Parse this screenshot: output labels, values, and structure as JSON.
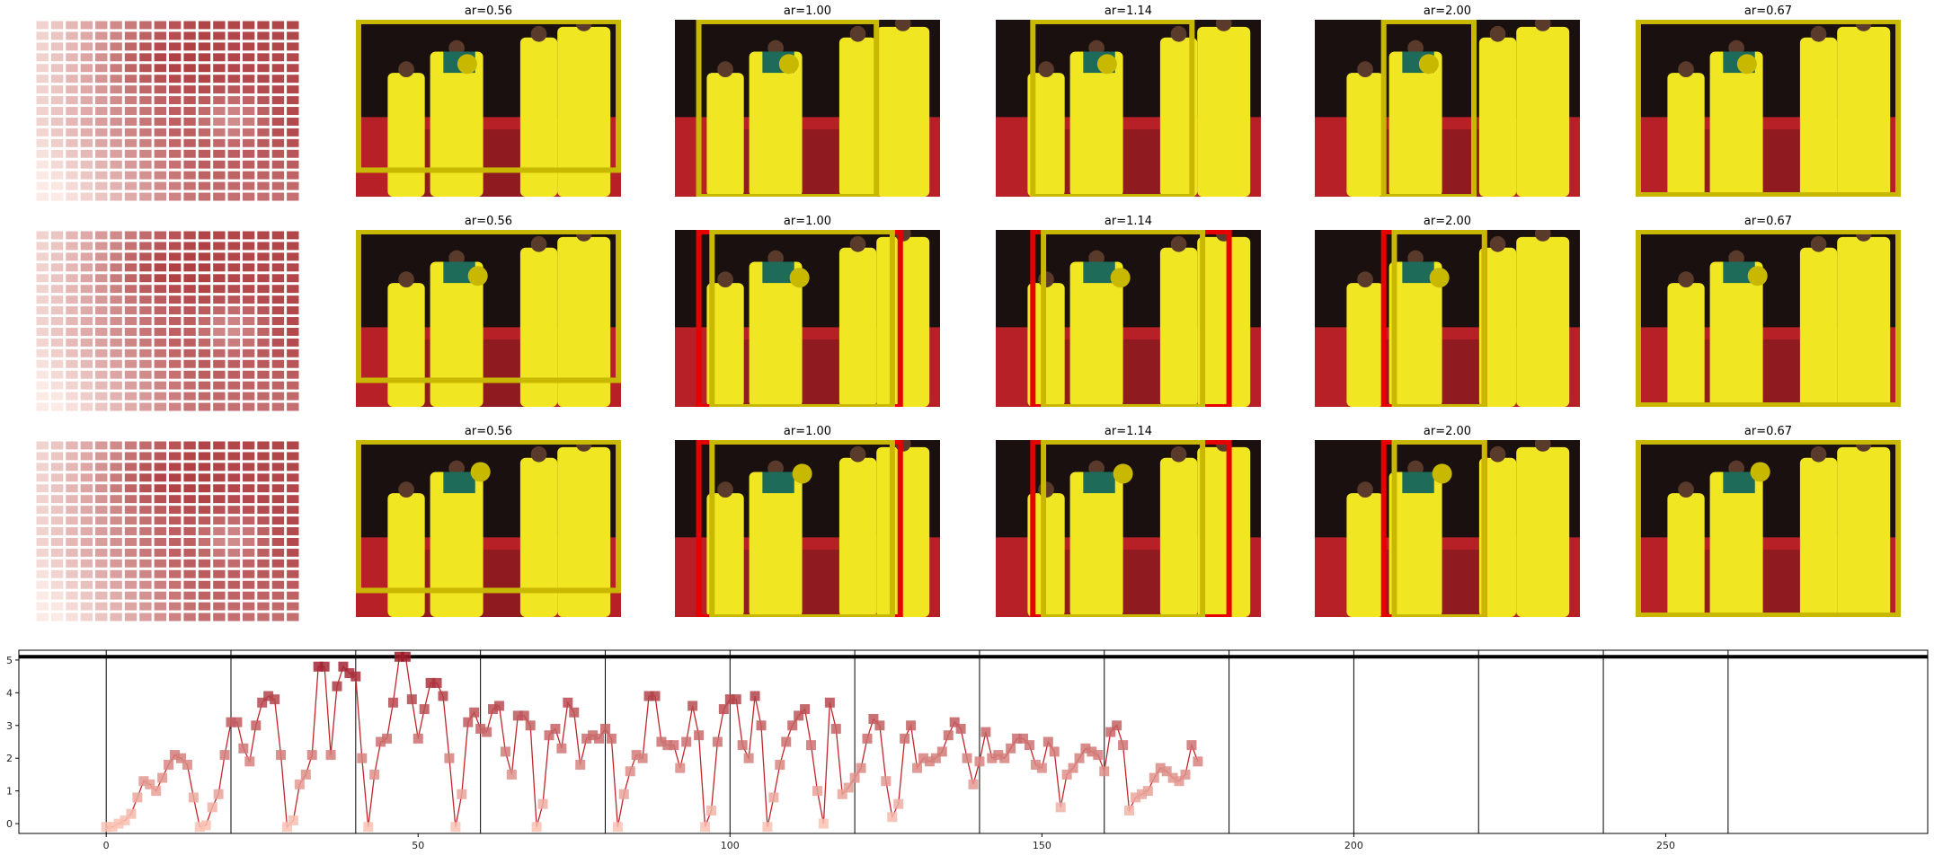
{
  "grid": {
    "rows": [
      {
        "panels": [
          {
            "title": "ar=0.56"
          },
          {
            "title": "ar=1.00"
          },
          {
            "title": "ar=1.14"
          },
          {
            "title": "ar=2.00"
          },
          {
            "title": "ar=0.67"
          }
        ]
      },
      {
        "panels": [
          {
            "title": "ar=0.56"
          },
          {
            "title": "ar=1.00"
          },
          {
            "title": "ar=1.14"
          },
          {
            "title": "ar=2.00"
          },
          {
            "title": "ar=0.67"
          }
        ]
      },
      {
        "panels": [
          {
            "title": "ar=0.56"
          },
          {
            "title": "ar=1.00"
          },
          {
            "title": "ar=1.14"
          },
          {
            "title": "ar=2.00"
          },
          {
            "title": "ar=0.67"
          }
        ]
      }
    ]
  },
  "colors": {
    "crop_box": "#c8b900",
    "alt_box": "#e60000",
    "focus_dot": "#c8b900",
    "line": "#c0262b",
    "marker_high": "#9e1b2a",
    "marker_low": "#f9c2b3",
    "threshold": "#000000"
  },
  "chart_data": {
    "type": "line",
    "title": "",
    "xlabel": "",
    "ylabel": "",
    "xlim": [
      -14,
      292
    ],
    "ylim": [
      -0.3,
      5.3
    ],
    "xticks": [
      0,
      50,
      100,
      150,
      200,
      250
    ],
    "yticks": [
      0,
      1,
      2,
      3,
      4,
      5
    ],
    "threshold_y": 5.1,
    "segment_boundaries": [
      0,
      20,
      40,
      60,
      80,
      100,
      120,
      140,
      160,
      180,
      200,
      220,
      240,
      260
    ],
    "series": [
      {
        "values": [
          -0.1,
          -0.1,
          0.0,
          0.1,
          0.3,
          0.8,
          1.3,
          1.2,
          1.0,
          1.4,
          1.8,
          2.1,
          2.0,
          1.8,
          0.8,
          -0.1,
          -0.05,
          0.5,
          0.9,
          2.1,
          3.1,
          3.1,
          2.3,
          1.9,
          3.0,
          3.7,
          3.9,
          3.8,
          2.1,
          -0.1,
          0.1,
          1.2,
          1.5,
          2.1,
          4.8,
          4.8,
          2.1,
          4.2,
          4.8,
          4.6,
          4.5,
          2.0,
          -0.1,
          1.5,
          2.5,
          2.6,
          3.7,
          5.1,
          5.1,
          3.8,
          2.6,
          3.5,
          4.3,
          4.3,
          3.9,
          2.0,
          -0.1,
          0.9,
          3.1,
          3.4,
          2.9,
          2.8,
          3.5,
          3.6,
          2.2,
          1.5,
          3.3,
          3.3,
          3.0,
          -0.1,
          0.6,
          2.7,
          2.9,
          2.3,
          3.7,
          3.4,
          1.8,
          2.6,
          2.7,
          2.6,
          2.9,
          2.6,
          -0.1,
          0.9,
          1.6,
          2.1,
          2.0,
          3.9,
          3.9,
          2.5,
          2.4,
          2.4,
          1.7,
          2.5,
          3.6,
          2.7,
          -0.1,
          0.4,
          2.5,
          3.5,
          3.8,
          3.8,
          2.4,
          2.0,
          3.9,
          3.0,
          -0.1,
          0.8,
          1.8,
          2.5,
          3.0,
          3.3,
          3.5,
          2.4,
          1.0,
          0.0,
          3.7,
          2.9,
          0.9,
          1.1,
          1.4,
          1.7,
          2.6,
          3.2,
          3.0,
          1.3,
          0.2,
          0.6,
          2.6,
          3.0,
          1.7,
          2.0,
          1.9,
          2.0,
          2.2,
          2.7,
          3.1,
          2.9,
          2.0,
          1.2,
          1.9,
          2.8,
          2.0,
          2.1,
          2.0,
          2.3,
          2.6,
          2.6,
          2.4,
          1.8,
          1.7,
          2.5,
          2.2,
          0.5,
          1.5,
          1.7,
          2.0,
          2.3,
          2.2,
          2.1,
          1.6,
          2.8,
          3.0,
          2.4,
          0.4,
          0.8,
          0.9,
          1.0,
          1.4,
          1.7,
          1.6,
          1.4,
          1.3,
          1.5,
          2.4,
          1.9
        ]
      }
    ]
  }
}
